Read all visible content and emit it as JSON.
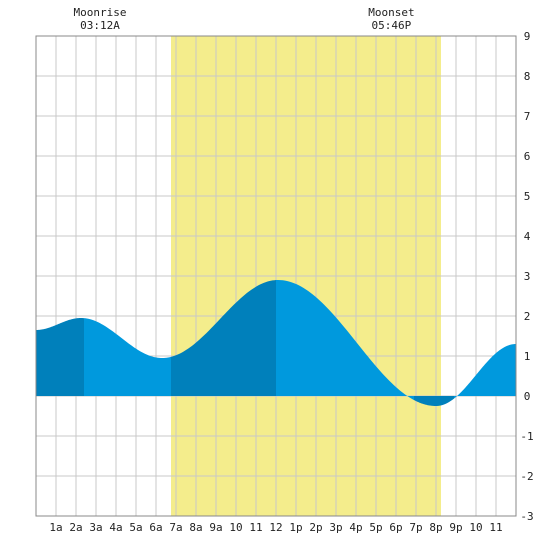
{
  "moon": {
    "rise_label": "Moonrise",
    "rise_time": "03:12A",
    "rise_hour": 3.2,
    "set_label": "Moonset",
    "set_time": "05:46P",
    "set_hour": 17.77
  },
  "colors": {
    "daylight": "#f4ed8c",
    "tide_light": "#0099dd",
    "tide_dark": "#0080bb",
    "grid": "#c8c8c8",
    "border": "#888888"
  },
  "chart_data": {
    "type": "area",
    "title": "",
    "xlabel": "",
    "ylabel": "",
    "xlim": [
      0,
      24
    ],
    "ylim": [
      -3,
      9
    ],
    "yticks": [
      "-3",
      "-2",
      "-1",
      "0",
      "1",
      "2",
      "3",
      "4",
      "5",
      "6",
      "7",
      "8",
      "9"
    ],
    "xtick_labels": [
      "1a",
      "2a",
      "3a",
      "4a",
      "5a",
      "6a",
      "7a",
      "8a",
      "9a",
      "10",
      "11",
      "12",
      "1p",
      "2p",
      "3p",
      "4p",
      "5p",
      "6p",
      "7p",
      "8p",
      "9p",
      "10",
      "11"
    ],
    "daylight": {
      "start_hour": 6.75,
      "end_hour": 20.25
    },
    "tide_extremes": [
      {
        "hour": 2.25,
        "height": 1.95,
        "type": "high"
      },
      {
        "hour": 6.3,
        "height": 0.95,
        "type": "low"
      },
      {
        "hour": 12.1,
        "height": 2.9,
        "type": "high"
      },
      {
        "hour": 20.0,
        "height": -0.25,
        "type": "low"
      }
    ],
    "start_height": 1.65,
    "end_height": 1.3,
    "shading_boundaries": [
      2.4,
      6.75,
      12.0,
      18.9,
      20.9
    ]
  }
}
